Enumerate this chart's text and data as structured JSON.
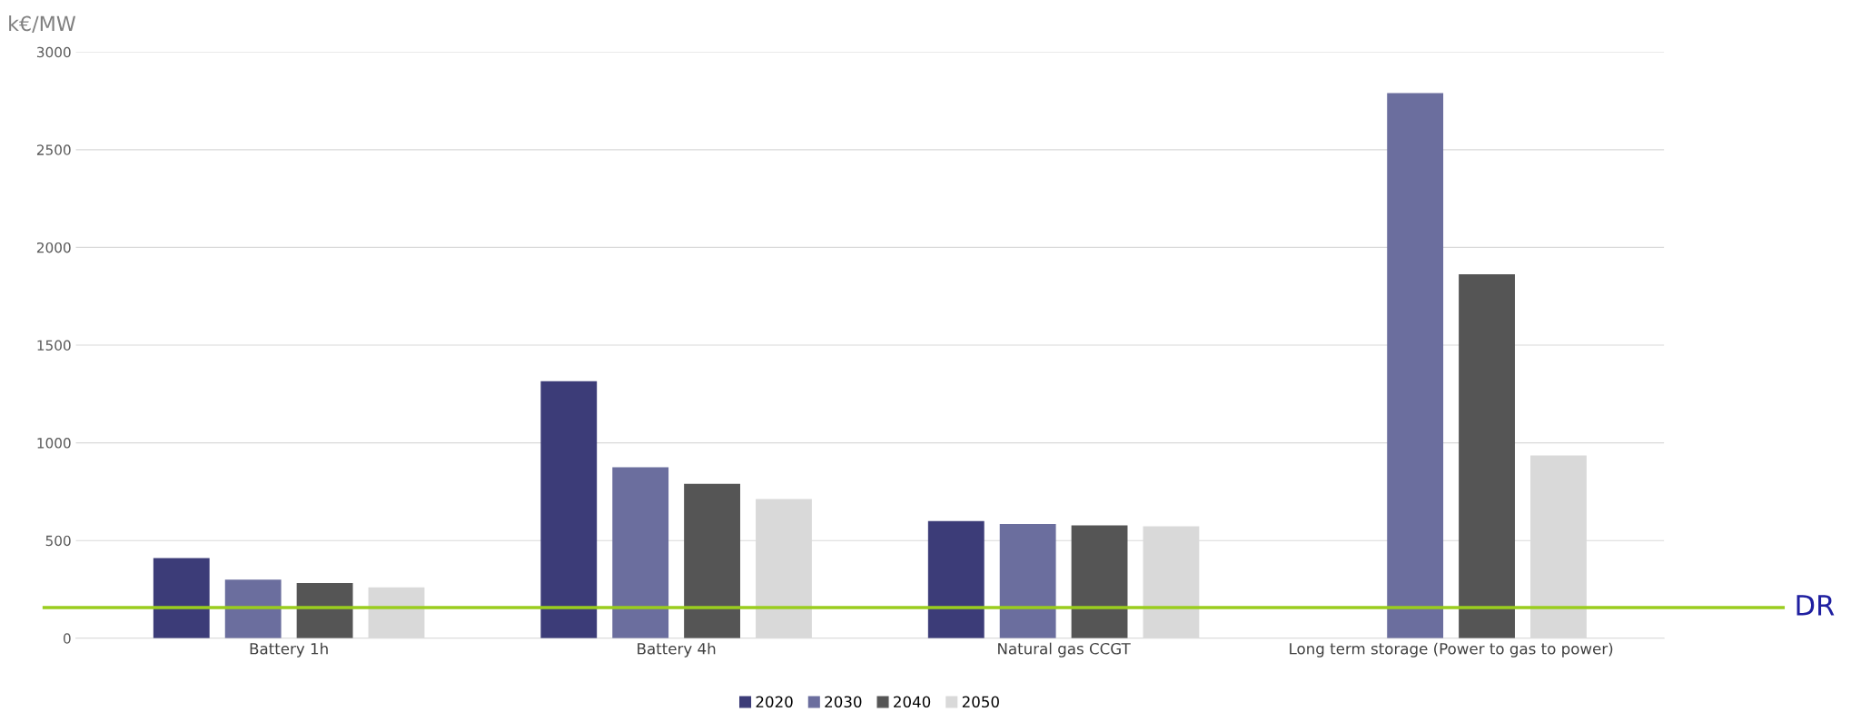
{
  "chart_data": {
    "type": "bar",
    "ylabel": "k€/MW",
    "categories": [
      "Battery 1h",
      "Battery 4h",
      "Natural gas CCGT",
      "Long term storage (Power to gas to power)"
    ],
    "series": [
      {
        "name": "2020",
        "color": "#3c3c78",
        "values": [
          410,
          1315,
          600,
          null
        ]
      },
      {
        "name": "2030",
        "color": "#6b6e9e",
        "values": [
          300,
          875,
          585,
          2790
        ]
      },
      {
        "name": "2040",
        "color": "#555555",
        "values": [
          282,
          790,
          578,
          1862
        ]
      },
      {
        "name": "2050",
        "color": "#d9d9d9",
        "values": [
          260,
          712,
          573,
          935
        ]
      }
    ],
    "ylim": [
      0,
      3000
    ],
    "yticks": [
      0,
      500,
      1000,
      1500,
      2000,
      2500,
      3000
    ],
    "grid": "y",
    "legend": "bottom",
    "ref_lines": [
      {
        "axis": "y",
        "value": 157,
        "label": "DR",
        "color": "#9acd1e"
      }
    ]
  }
}
